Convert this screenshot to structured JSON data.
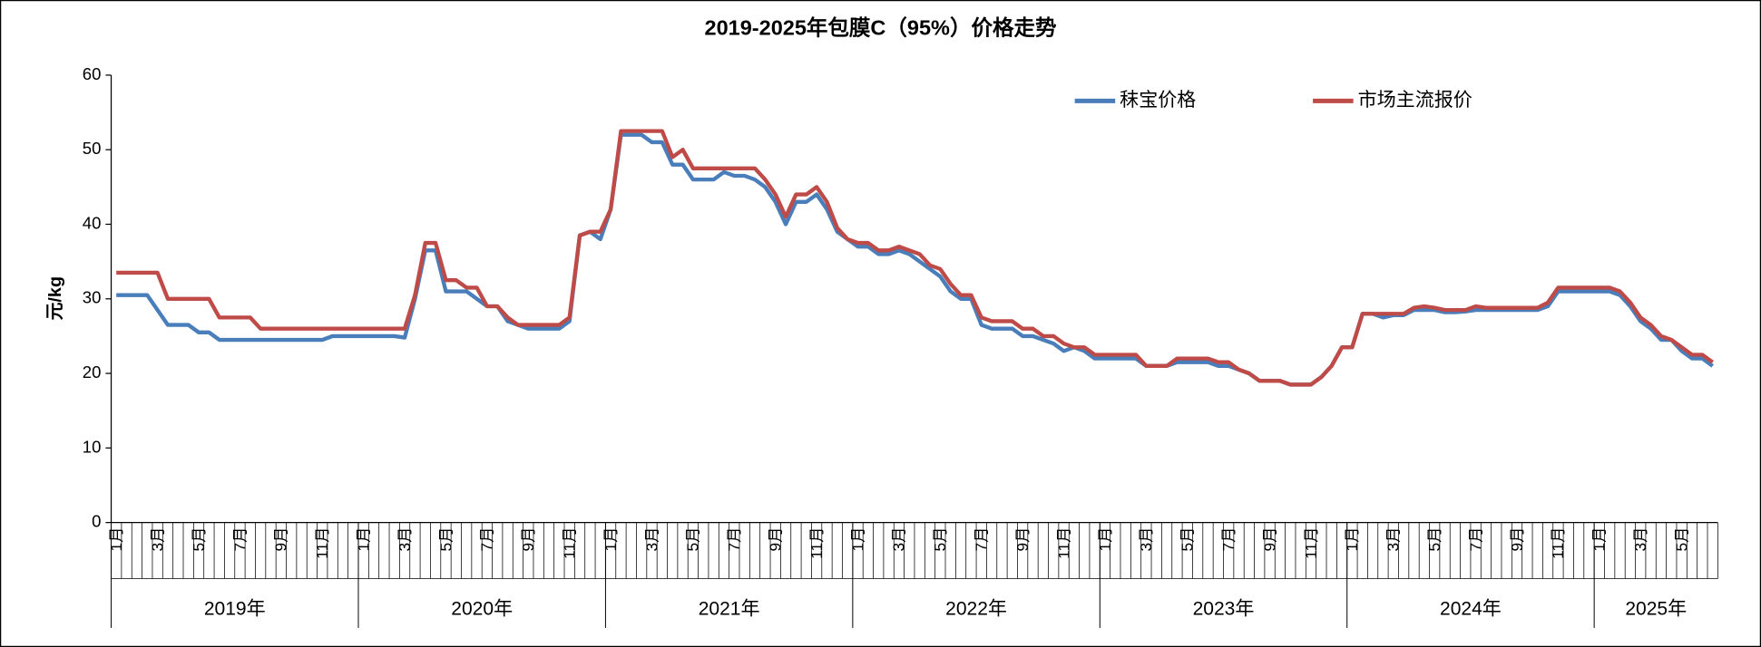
{
  "chart_data": {
    "type": "line",
    "title": "2019-2025年包膜C（95%）价格走势",
    "y_label": "元/kg",
    "ylim": [
      0,
      60
    ],
    "yticks": [
      0,
      10,
      20,
      30,
      40,
      50,
      60
    ],
    "legend": "top-right",
    "x_groups": [
      "2019年",
      "2020年",
      "2021年",
      "2022年",
      "2023年",
      "2024年",
      "2025年"
    ],
    "categories": [
      "1月",
      null,
      null,
      null,
      "3月",
      null,
      null,
      null,
      "5月",
      null,
      null,
      null,
      "7月",
      null,
      null,
      null,
      "9月",
      null,
      null,
      null,
      "11月",
      null,
      null,
      null,
      "1月",
      null,
      null,
      null,
      "3月",
      null,
      null,
      null,
      "5月",
      null,
      null,
      null,
      "7月",
      null,
      null,
      null,
      "9月",
      null,
      null,
      null,
      "11月",
      null,
      null,
      null,
      "1月",
      null,
      null,
      null,
      "3月",
      null,
      null,
      null,
      "5月",
      null,
      null,
      null,
      "7月",
      null,
      null,
      null,
      "9月",
      null,
      null,
      null,
      "11月",
      null,
      null,
      null,
      "1月",
      null,
      null,
      null,
      "3月",
      null,
      null,
      null,
      "5月",
      null,
      null,
      null,
      "7月",
      null,
      null,
      null,
      "9月",
      null,
      null,
      null,
      "11月",
      null,
      null,
      null,
      "1月",
      null,
      null,
      null,
      "3月",
      null,
      null,
      null,
      "5月",
      null,
      null,
      null,
      "7月",
      null,
      null,
      null,
      "9月",
      null,
      null,
      null,
      "11月",
      null,
      null,
      null,
      "1月",
      null,
      null,
      null,
      "3月",
      null,
      null,
      null,
      "5月",
      null,
      null,
      null,
      "7月",
      null,
      null,
      null,
      "9月",
      null,
      null,
      null,
      "11月",
      null,
      null,
      null,
      "1月",
      null,
      null,
      null,
      "3月",
      null,
      null,
      null,
      "5月",
      null,
      null,
      null
    ],
    "series": [
      {
        "name": "秣宝价格",
        "color": "#4a7ebb",
        "values": [
          30.5,
          30.5,
          30.5,
          30.5,
          28.5,
          26.5,
          26.5,
          26.5,
          25.5,
          25.5,
          24.5,
          24.5,
          24.5,
          24.5,
          24.5,
          24.5,
          24.5,
          24.5,
          24.5,
          24.5,
          24.5,
          25,
          25,
          25,
          25,
          25,
          25,
          25,
          24.8,
          30,
          36.5,
          36.5,
          31,
          31,
          31,
          30,
          29,
          29,
          27,
          26.5,
          26,
          26,
          26,
          26,
          27,
          38.5,
          39,
          38,
          42,
          52,
          52,
          52,
          51,
          51,
          48,
          48,
          46,
          46,
          46,
          47,
          46.5,
          46.5,
          46,
          45,
          43,
          40,
          43,
          43,
          44,
          42,
          39,
          38,
          37,
          37,
          36,
          36,
          36.5,
          36,
          35,
          34,
          33,
          31,
          30,
          30,
          26.5,
          26,
          26,
          26,
          25,
          25,
          24.5,
          24,
          23,
          23.5,
          23,
          22,
          22,
          22,
          22,
          22,
          21,
          21,
          21,
          21.5,
          21.5,
          21.5,
          21.5,
          21,
          21,
          20.5,
          20,
          19,
          19,
          19,
          18.5,
          18.5,
          18.5,
          19.5,
          21,
          23.5,
          23.5,
          28,
          28,
          27.5,
          27.8,
          27.8,
          28.5,
          28.5,
          28.5,
          28.2,
          28.2,
          28.3,
          28.5,
          28.5,
          28.5,
          28.5,
          28.5,
          28.5,
          28.5,
          29,
          31,
          31,
          31,
          31,
          31,
          31,
          30.5,
          29,
          27,
          26,
          24.5,
          24.5,
          23,
          22,
          22,
          21
        ]
      },
      {
        "name": "市场主流报价",
        "color": "#be4b48",
        "values": [
          33.5,
          33.5,
          33.5,
          33.5,
          33.5,
          30,
          30,
          30,
          30,
          30,
          27.5,
          27.5,
          27.5,
          27.5,
          26,
          26,
          26,
          26,
          26,
          26,
          26,
          26,
          26,
          26,
          26,
          26,
          26,
          26,
          26,
          30.5,
          37.5,
          37.5,
          32.5,
          32.5,
          31.5,
          31.5,
          29,
          29,
          27.5,
          26.5,
          26.5,
          26.5,
          26.5,
          26.5,
          27.5,
          38.5,
          39,
          39,
          42,
          52.5,
          52.5,
          52.5,
          52.5,
          52.5,
          49,
          50,
          47.5,
          47.5,
          47.5,
          47.5,
          47.5,
          47.5,
          47.5,
          46,
          44,
          41,
          44,
          44,
          45,
          43,
          39.5,
          38,
          37.5,
          37.5,
          36.5,
          36.5,
          37,
          36.5,
          36,
          34.5,
          34,
          32,
          30.5,
          30.5,
          27.5,
          27,
          27,
          27,
          26,
          26,
          25,
          25,
          24,
          23.5,
          23.5,
          22.5,
          22.5,
          22.5,
          22.5,
          22.5,
          21,
          21,
          21,
          22,
          22,
          22,
          22,
          21.5,
          21.5,
          20.5,
          20,
          19,
          19,
          19,
          18.5,
          18.5,
          18.5,
          19.5,
          21,
          23.5,
          23.5,
          28,
          28,
          28,
          28,
          28,
          28.8,
          29,
          28.8,
          28.5,
          28.5,
          28.5,
          29,
          28.8,
          28.8,
          28.8,
          28.8,
          28.8,
          28.8,
          29.5,
          31.5,
          31.5,
          31.5,
          31.5,
          31.5,
          31.5,
          31,
          29.5,
          27.5,
          26.5,
          25,
          24.5,
          23.5,
          22.5,
          22.5,
          21.5
        ]
      }
    ]
  }
}
